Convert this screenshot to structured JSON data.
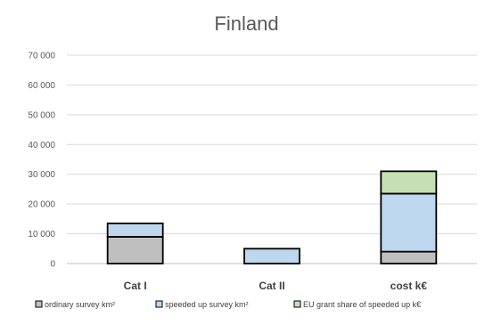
{
  "chart_data": {
    "type": "bar",
    "stacked": true,
    "title": "Finland",
    "categories": [
      "Cat I",
      "Cat II",
      "cost k€"
    ],
    "ylim": [
      0,
      70000
    ],
    "yticks": [
      "0",
      "10 000",
      "20 000",
      "30 000",
      "40 000",
      "50 000",
      "60 000",
      "70 000"
    ],
    "ytick_values": [
      0,
      10000,
      20000,
      30000,
      40000,
      50000,
      60000,
      70000
    ],
    "grid": true,
    "legend_position": "bottom",
    "series": [
      {
        "name": "ordinary survey km²",
        "values": [
          9000,
          0,
          4000
        ],
        "color": "#bfbfbf"
      },
      {
        "name": "speeded up survey km²",
        "values": [
          4500,
          5000,
          19500
        ],
        "color": "#bdd7ee"
      },
      {
        "name": "EU grant share of speeded up k€",
        "values": [
          0,
          0,
          7500
        ],
        "color": "#c6e0b4"
      }
    ]
  }
}
